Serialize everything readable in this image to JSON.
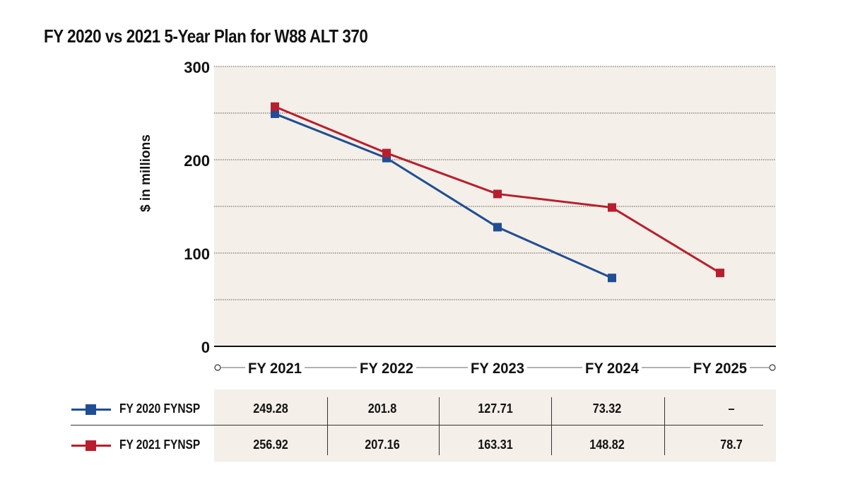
{
  "title": "FY 2020 vs 2021 5-Year Plan for W88 ALT 370",
  "chart_data": {
    "type": "line",
    "title": "FY 2020 vs 2021 5-Year Plan for W88 ALT 370",
    "xlabel": "",
    "ylabel": "$ in millions",
    "categories": [
      "FY 2021",
      "FY 2022",
      "FY 2023",
      "FY 2024",
      "FY 2025"
    ],
    "ylim": [
      0,
      300
    ],
    "yticks": [
      0,
      100,
      200,
      300
    ],
    "grid": true,
    "series": [
      {
        "name": "FY 2020 FYNSP",
        "color": "#1f4e94",
        "values": [
          249.28,
          201.8,
          127.71,
          73.32,
          null
        ],
        "labels": [
          "249.28",
          "201.8",
          "127.71",
          "73.32",
          "–"
        ]
      },
      {
        "name": "FY 2021 FYNSP",
        "color": "#b81e2d",
        "values": [
          256.92,
          207.16,
          163.31,
          148.82,
          78.7
        ],
        "labels": [
          "256.92",
          "207.16",
          "163.31",
          "148.82",
          "78.7"
        ]
      }
    ],
    "plot_background": "#f4efe8"
  }
}
